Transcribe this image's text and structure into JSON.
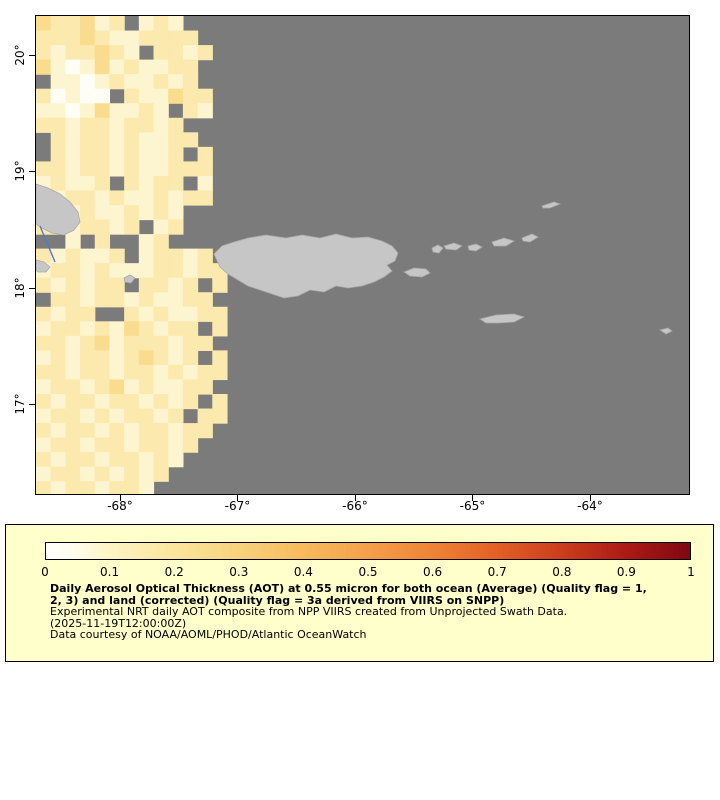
{
  "page": {
    "background": "#ffffff"
  },
  "map": {
    "bg_color": "#7b7b7b",
    "land_color": "#c6c6c6",
    "coast_color": "#a8a8a8",
    "extent": {
      "lon_min": -68.723,
      "lon_max": -63.149,
      "lat_min": 16.217,
      "lat_max": 20.344
    },
    "x_ticks": [
      {
        "label": "-68°",
        "lon": -68
      },
      {
        "label": "-67°",
        "lon": -67
      },
      {
        "label": "-66°",
        "lon": -66
      },
      {
        "label": "-65°",
        "lon": -65
      },
      {
        "label": "-64°",
        "lon": -64
      }
    ],
    "y_ticks": [
      {
        "label": "20°",
        "lat": 20
      },
      {
        "label": "19°",
        "lat": 19
      },
      {
        "label": "18°",
        "lat": 18
      },
      {
        "label": "17°",
        "lat": 17
      }
    ],
    "river": {
      "color": "#5577cc",
      "points": [
        [
          4,
          210
        ],
        [
          9,
          222
        ],
        [
          14,
          234
        ],
        [
          19,
          246
        ]
      ]
    },
    "islands": [
      {
        "name": "hispaniola-coast",
        "points": [
          [
            0,
            168
          ],
          [
            12,
            172
          ],
          [
            24,
            178
          ],
          [
            34,
            186
          ],
          [
            42,
            196
          ],
          [
            44,
            206
          ],
          [
            38,
            214
          ],
          [
            28,
            219
          ],
          [
            16,
            217
          ],
          [
            6,
            212
          ],
          [
            0,
            208
          ]
        ]
      },
      {
        "name": "islet-west",
        "points": [
          [
            0,
            244
          ],
          [
            8,
            246
          ],
          [
            14,
            251
          ],
          [
            10,
            256
          ],
          [
            2,
            256
          ],
          [
            0,
            254
          ]
        ]
      },
      {
        "name": "mona",
        "points": [
          [
            88,
            262
          ],
          [
            94,
            259
          ],
          [
            99,
            262
          ],
          [
            95,
            267
          ],
          [
            89,
            266
          ]
        ]
      },
      {
        "name": "puerto-rico",
        "points": [
          [
            178,
            238
          ],
          [
            186,
            230
          ],
          [
            198,
            226
          ],
          [
            212,
            222
          ],
          [
            230,
            219
          ],
          [
            250,
            222
          ],
          [
            266,
            219
          ],
          [
            284,
            222
          ],
          [
            300,
            218
          ],
          [
            316,
            222
          ],
          [
            332,
            221
          ],
          [
            346,
            225
          ],
          [
            356,
            230
          ],
          [
            362,
            237
          ],
          [
            359,
            245
          ],
          [
            351,
            249
          ],
          [
            356,
            255
          ],
          [
            348,
            261
          ],
          [
            338,
            266
          ],
          [
            326,
            270
          ],
          [
            312,
            272
          ],
          [
            300,
            270
          ],
          [
            288,
            276
          ],
          [
            274,
            274
          ],
          [
            262,
            280
          ],
          [
            248,
            282
          ],
          [
            236,
            278
          ],
          [
            224,
            274
          ],
          [
            212,
            270
          ],
          [
            202,
            264
          ],
          [
            192,
            258
          ],
          [
            184,
            251
          ]
        ]
      },
      {
        "name": "vieques",
        "points": [
          [
            368,
            256
          ],
          [
            378,
            252
          ],
          [
            390,
            253
          ],
          [
            394,
            257
          ],
          [
            386,
            261
          ],
          [
            374,
            260
          ]
        ]
      },
      {
        "name": "culebra",
        "points": [
          [
            396,
            232
          ],
          [
            402,
            229
          ],
          [
            407,
            232
          ],
          [
            403,
            237
          ],
          [
            397,
            236
          ]
        ]
      },
      {
        "name": "st-thomas",
        "points": [
          [
            408,
            230
          ],
          [
            418,
            227
          ],
          [
            426,
            230
          ],
          [
            420,
            234
          ],
          [
            410,
            233
          ]
        ]
      },
      {
        "name": "st-john",
        "points": [
          [
            432,
            230
          ],
          [
            440,
            228
          ],
          [
            446,
            231
          ],
          [
            440,
            235
          ],
          [
            433,
            234
          ]
        ]
      },
      {
        "name": "tortola",
        "points": [
          [
            456,
            226
          ],
          [
            468,
            222
          ],
          [
            478,
            225
          ],
          [
            470,
            230
          ],
          [
            458,
            230
          ]
        ]
      },
      {
        "name": "virgin-gorda",
        "points": [
          [
            486,
            222
          ],
          [
            496,
            218
          ],
          [
            502,
            221
          ],
          [
            494,
            226
          ],
          [
            487,
            225
          ]
        ]
      },
      {
        "name": "anegada",
        "points": [
          [
            506,
            190
          ],
          [
            518,
            186
          ],
          [
            524,
            188
          ],
          [
            514,
            192
          ],
          [
            507,
            192
          ]
        ]
      },
      {
        "name": "st-croix",
        "points": [
          [
            444,
            303
          ],
          [
            460,
            299
          ],
          [
            478,
            298
          ],
          [
            488,
            301
          ],
          [
            478,
            306
          ],
          [
            462,
            307
          ],
          [
            450,
            307
          ]
        ]
      },
      {
        "name": "islet-east",
        "points": [
          [
            624,
            314
          ],
          [
            632,
            312
          ],
          [
            636,
            315
          ],
          [
            630,
            318
          ]
        ]
      }
    ]
  },
  "chart_data": {
    "type": "heatmap",
    "variable": "Daily Aerosol Optical Thickness (AOT) at 0.55 micron",
    "value_range": [
      0,
      1
    ],
    "cell_size_deg": 0.125,
    "grid_origin": {
      "lon": -68.723,
      "lat_top": 20.344
    },
    "no_data_char": ".",
    "levels": {
      "0": 0.02,
      "1": 0.07,
      "2": 0.12,
      "3": 0.18,
      "4": 0.25,
      "5": 0.32,
      "6": 0.4
    },
    "level_colors": {
      "0": "#fefef6",
      "1": "#fdf5cf",
      "2": "#fbe9ad",
      "3": "#f9dc8e",
      "4": "#f6c979",
      "5": "#f2b45e",
      "6": "#ec9a44"
    },
    "rows": [
      "322312.121...",
      "22232112222..",
      "2122321.2212.",
      "31013121122..",
      ".1101211212..",
      "20100.211322.",
      "110131121.21.",
      "2212212212...",
      ".2122121122..",
      ".212212112.2.",
      "221221211222.",
      "12112.2122.1.",
      "212212112122.",
      "1212112121...",
      "2212212.12...",
      "..1.2..12....",
      "212112.12212.",
      "1221211122122",
      "212122.2212.2",
      ".22122121122.",
      "2122..2121122",
      "12212132122.2",
      "221231222122.",
      "12122123212.2",
      "2212212212122",
      "122123121122.",
      "21221221212.2",
      "1221212212.22",
      "212212122122.",
      "12212212212..",
      "2122122121...",
      "122121212....",
      "21221221....."
    ]
  },
  "legend": {
    "background": "#ffffcc",
    "colorbar": {
      "min": 0,
      "max": 1,
      "ticks": [
        "0",
        "0.1",
        "0.2",
        "0.3",
        "0.4",
        "0.5",
        "0.6",
        "0.7",
        "0.8",
        "0.9",
        "1"
      ],
      "gradient": [
        {
          "at": 0.0,
          "color": "#ffffff"
        },
        {
          "at": 0.05,
          "color": "#fffbe8"
        },
        {
          "at": 0.1,
          "color": "#fdf3c4"
        },
        {
          "at": 0.2,
          "color": "#fbe59c"
        },
        {
          "at": 0.3,
          "color": "#f9d27d"
        },
        {
          "at": 0.4,
          "color": "#f7ba5d"
        },
        {
          "at": 0.5,
          "color": "#f5a04a"
        },
        {
          "at": 0.6,
          "color": "#ef8336"
        },
        {
          "at": 0.7,
          "color": "#e36026"
        },
        {
          "at": 0.8,
          "color": "#cc3d1d"
        },
        {
          "at": 0.9,
          "color": "#ad1a16"
        },
        {
          "at": 1.0,
          "color": "#7f0812"
        }
      ]
    },
    "title_bold": [
      "Daily Aerosol Optical Thickness (AOT) at 0.55 micron for both ocean (Average) (Quality flag = 1,",
      "2, 3) and land (corrected) (Quality flag = 3a derived from VIIRS on SNPP)"
    ],
    "lines": [
      "Experimental NRT daily AOT composite from NPP VIIRS created from Unprojected Swath Data.",
      "(2025-11-19T12:00:00Z)",
      "Data courtesy of NOAA/AOML/PHOD/Atlantic OceanWatch"
    ]
  }
}
